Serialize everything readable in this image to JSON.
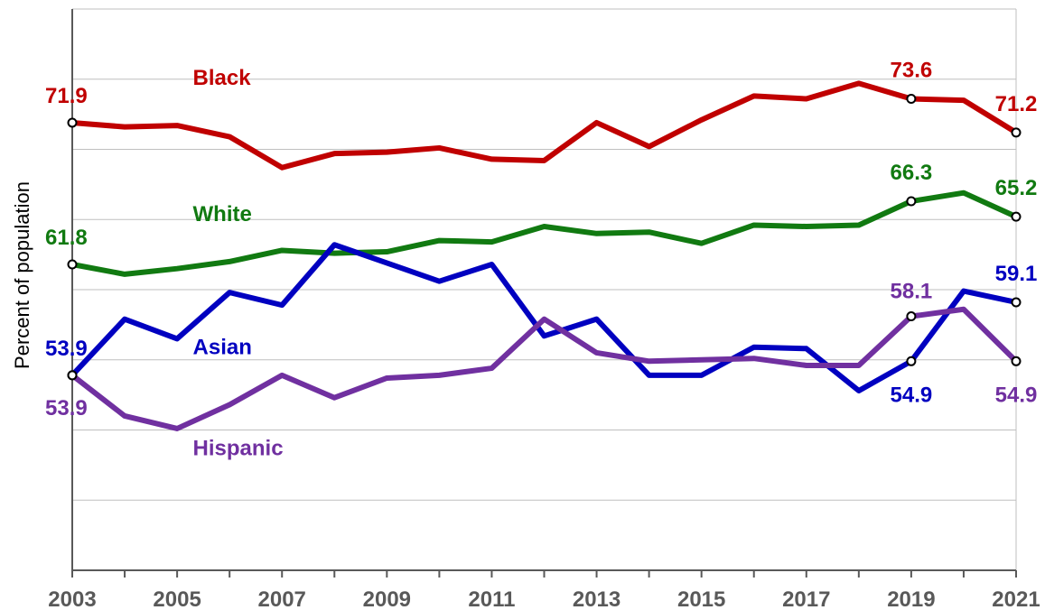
{
  "chart_data": {
    "type": "line",
    "ylabel": "Percent of population",
    "xlabel": "",
    "ylim": [
      40,
      80
    ],
    "y_gridlines": [
      45,
      50,
      55,
      60,
      65,
      70,
      75,
      80
    ],
    "x": [
      2003,
      2004,
      2005,
      2006,
      2007,
      2008,
      2009,
      2010,
      2011,
      2012,
      2013,
      2014,
      2015,
      2016,
      2017,
      2018,
      2019,
      2020,
      2021
    ],
    "x_tick_labels": [
      "2003",
      "2005",
      "2007",
      "2009",
      "2011",
      "2013",
      "2015",
      "2017",
      "2019",
      "2021"
    ],
    "series": [
      {
        "name": "Black",
        "color": "#c00000",
        "values": [
          71.9,
          71.6,
          71.7,
          70.9,
          68.7,
          69.7,
          69.8,
          70.1,
          69.3,
          69.2,
          71.9,
          70.2,
          72.1,
          73.8,
          73.6,
          74.7,
          73.6,
          73.5,
          71.2
        ]
      },
      {
        "name": "White",
        "color": "#117a11",
        "values": [
          61.8,
          61.1,
          61.5,
          62.0,
          62.8,
          62.6,
          62.7,
          63.5,
          63.4,
          64.5,
          64.0,
          64.1,
          63.3,
          64.6,
          64.5,
          64.6,
          66.3,
          66.9,
          65.2
        ]
      },
      {
        "name": "Asian",
        "color": "#0000c0",
        "values": [
          53.9,
          57.9,
          56.5,
          59.8,
          58.9,
          63.2,
          61.9,
          60.6,
          61.8,
          56.7,
          57.9,
          53.9,
          53.9,
          55.9,
          55.8,
          52.8,
          54.9,
          59.9,
          59.1
        ]
      },
      {
        "name": "Hispanic",
        "color": "#7030a0",
        "values": [
          53.9,
          51.0,
          50.1,
          51.8,
          53.9,
          52.3,
          53.7,
          53.9,
          54.4,
          57.9,
          55.5,
          54.9,
          55.0,
          55.1,
          54.6,
          54.6,
          58.1,
          58.6,
          54.9
        ]
      }
    ],
    "data_labels": [
      {
        "series": "Black",
        "x": 2003,
        "text": "71.9"
      },
      {
        "series": "Black",
        "x": 2019,
        "text": "73.6"
      },
      {
        "series": "Black",
        "x": 2021,
        "text": "71.2"
      },
      {
        "series": "White",
        "x": 2003,
        "text": "61.8"
      },
      {
        "series": "White",
        "x": 2019,
        "text": "66.3"
      },
      {
        "series": "White",
        "x": 2021,
        "text": "65.2"
      },
      {
        "series": "Asian",
        "x": 2003,
        "text": "53.9"
      },
      {
        "series": "Asian",
        "x": 2019,
        "text": "54.9"
      },
      {
        "series": "Asian",
        "x": 2021,
        "text": "59.1"
      },
      {
        "series": "Hispanic",
        "x": 2003,
        "text": "53.9"
      },
      {
        "series": "Hispanic",
        "x": 2019,
        "text": "58.1"
      },
      {
        "series": "Hispanic",
        "x": 2021,
        "text": "54.9"
      }
    ],
    "grid": true,
    "legend": "inline"
  }
}
